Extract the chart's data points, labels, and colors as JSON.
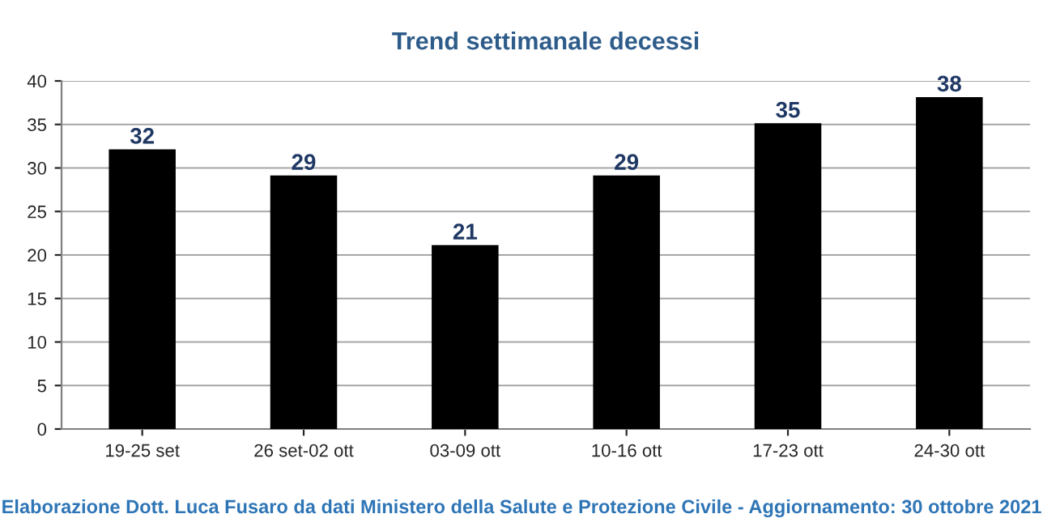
{
  "chart_data": {
    "type": "bar",
    "title": "Trend settimanale decessi",
    "categories": [
      "19-25 set",
      "26 set-02 ott",
      "03-09 ott",
      "10-16 ott",
      "17-23 ott",
      "24-30 ott"
    ],
    "values": [
      32,
      29,
      21,
      29,
      35,
      38
    ],
    "color": "#000000",
    "ylim": [
      0,
      40
    ],
    "yticks": [
      0,
      5,
      10,
      15,
      20,
      25,
      30,
      35,
      40
    ],
    "grid": "y",
    "data_labels": true,
    "annotations": [
      "Elaborazione Dott. Luca Fusaro da dati Ministero della Salute e Protezione Civile - Aggiornamento: 30 ottobre 2021"
    ]
  }
}
